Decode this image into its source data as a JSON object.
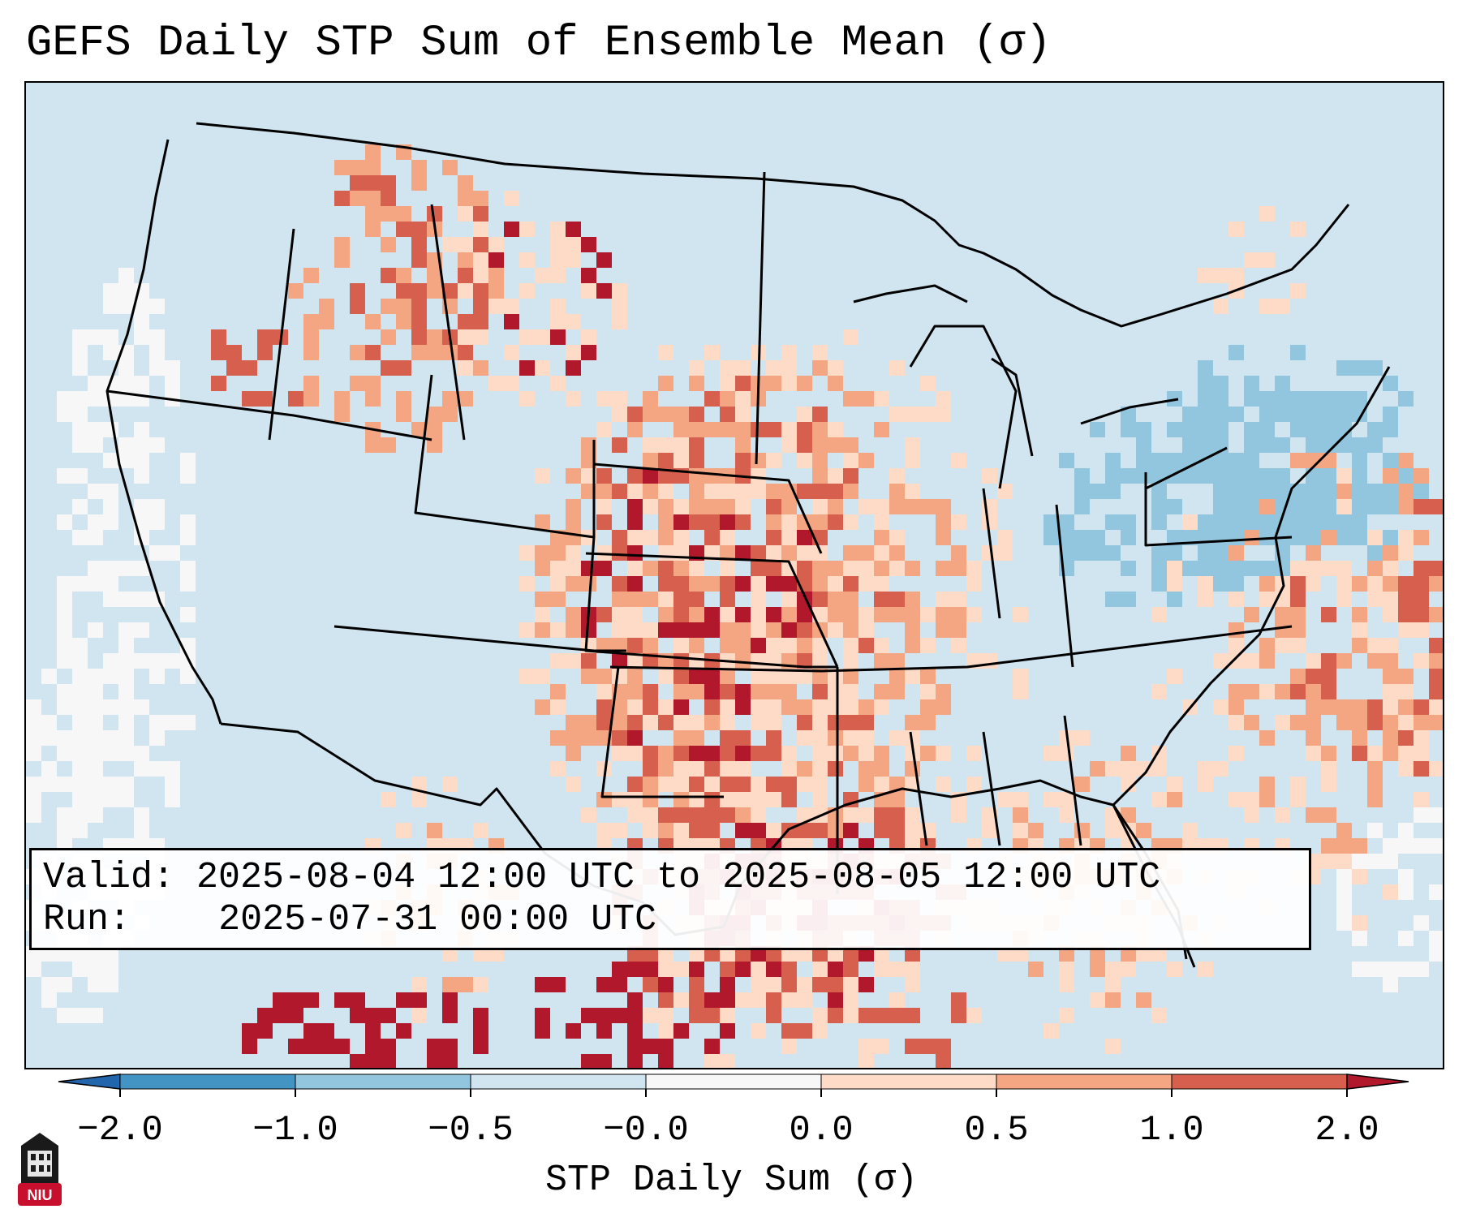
{
  "title": "GEFS Daily STP Sum of Ensemble Mean (σ)",
  "valid_box": {
    "valid_label": "Valid:",
    "valid_value": "2025-08-04 12:00 UTC to 2025-08-05 12:00 UTC",
    "run_label": "Run:",
    "run_value": "2025-07-31 00:00 UTC"
  },
  "colorbar": {
    "label": "STP Daily Sum (σ)",
    "ticks": [
      "−2.0",
      "−1.0",
      "−0.5",
      "−0.0",
      "0.0",
      "0.5",
      "1.0",
      "2.0"
    ],
    "colors": [
      "#4393c3",
      "#92c5de",
      "#d1e5f0",
      "#f7f7f7",
      "#fddbc7",
      "#f4a582",
      "#d6604d"
    ],
    "extend_low": "#2166ac",
    "extend_high": "#b2182b"
  },
  "map": {
    "domain": "CONUS",
    "ocean_color": "#d1e5f0",
    "outline_color": "#000000"
  },
  "logo": {
    "text": "NIU",
    "color": "#c8102e"
  }
}
